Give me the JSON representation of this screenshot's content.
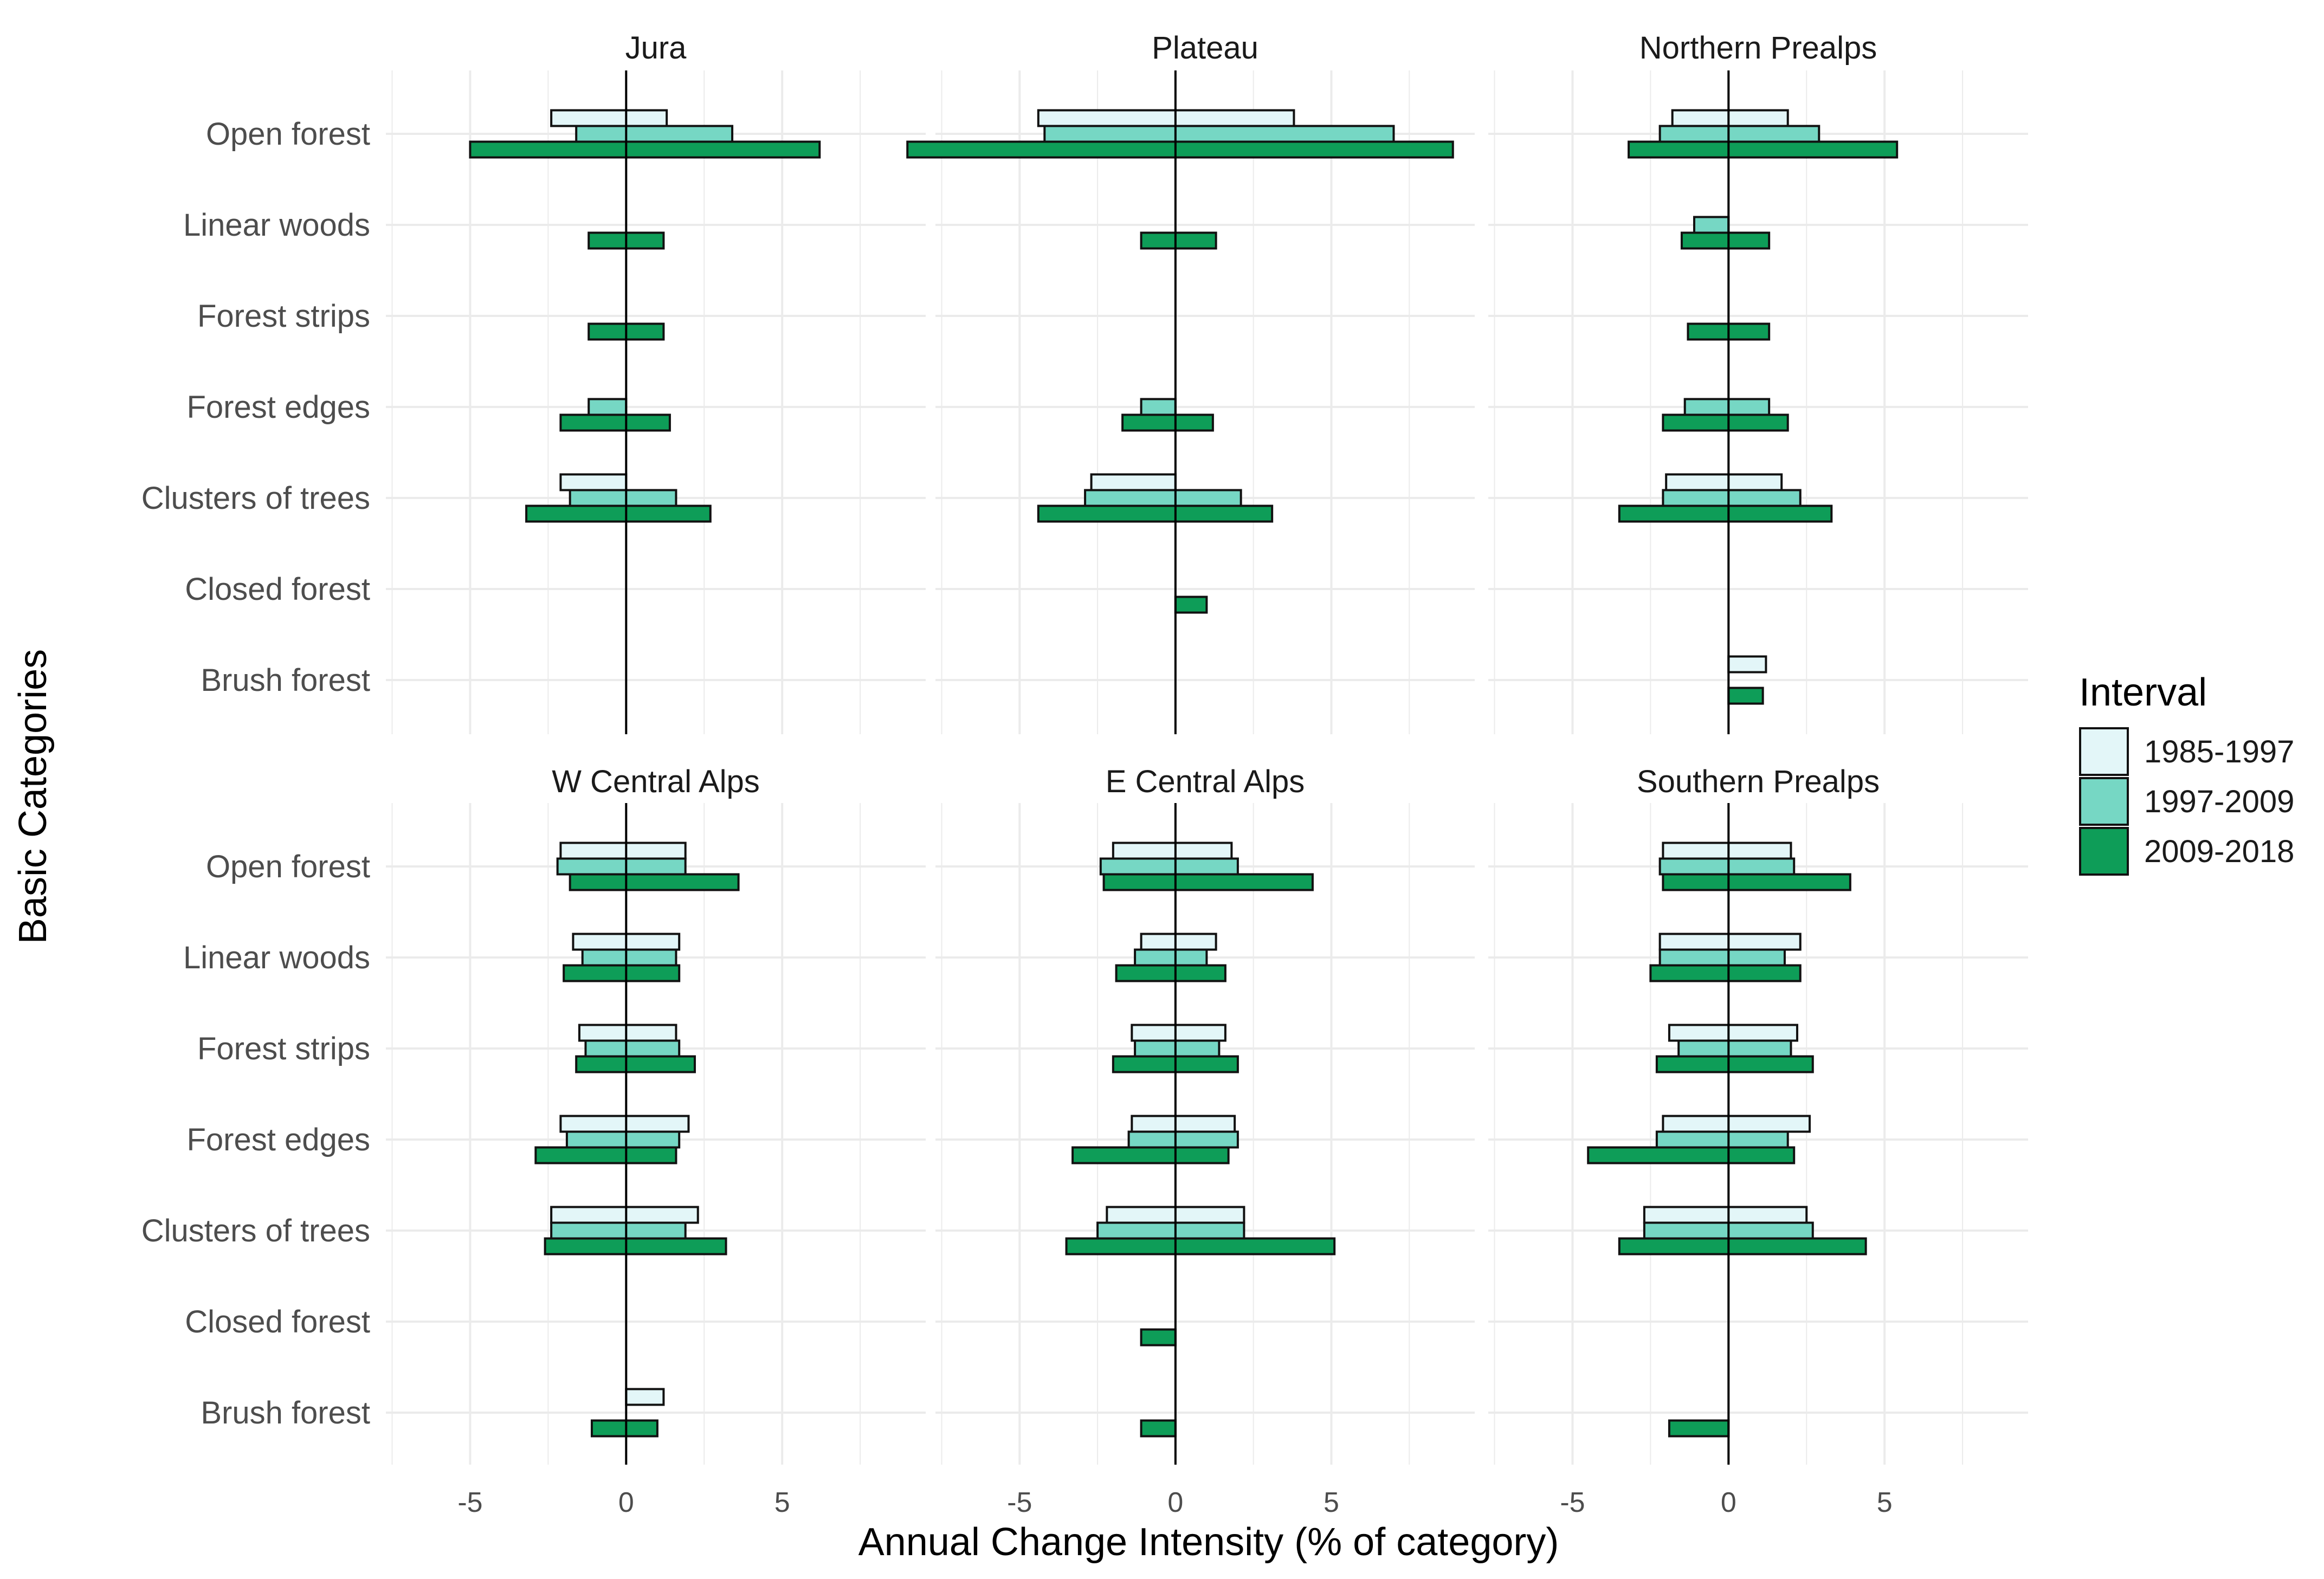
{
  "chart_data": {
    "type": "bar",
    "orientation": "horizontal",
    "xlabel": "Annual Change Intensity (% of category)",
    "ylabel": "Basic Categories",
    "xlim": [
      -7.7,
      9.6
    ],
    "xticks": [
      -5,
      0,
      5
    ],
    "xtick_labels": [
      "-5",
      "0",
      "5"
    ],
    "grid": true,
    "legend": {
      "title": "Interval",
      "placement": "right",
      "entries": [
        "1985-1997",
        "1997-2009",
        "2009-2018"
      ]
    },
    "series_colors": [
      "#e3f6f8",
      "#76d7c4",
      "#0e9d58"
    ],
    "categories": [
      "Open forest",
      "Linear woods",
      "Forest strips",
      "Forest edges",
      "Clusters of trees",
      "Closed forest",
      "Brush forest"
    ],
    "series_names": [
      "1985-1997",
      "1997-2009",
      "2009-2018"
    ],
    "panels": [
      {
        "title": "Jura",
        "bars": [
          {
            "category": "Open forest",
            "series": "1985-1997",
            "neg": -2.4,
            "pos": 1.3
          },
          {
            "category": "Open forest",
            "series": "1997-2009",
            "neg": -1.6,
            "pos": 3.4
          },
          {
            "category": "Open forest",
            "series": "2009-2018",
            "neg": -5.0,
            "pos": 6.2
          },
          {
            "category": "Linear woods",
            "series": "2009-2018",
            "neg": -1.2,
            "pos": 1.2
          },
          {
            "category": "Forest strips",
            "series": "2009-2018",
            "neg": -1.2,
            "pos": 1.2
          },
          {
            "category": "Forest edges",
            "series": "1997-2009",
            "neg": -1.2,
            "pos": 0
          },
          {
            "category": "Forest edges",
            "series": "2009-2018",
            "neg": -2.1,
            "pos": 1.4
          },
          {
            "category": "Clusters of trees",
            "series": "1985-1997",
            "neg": -2.1,
            "pos": 0
          },
          {
            "category": "Clusters of trees",
            "series": "1997-2009",
            "neg": -1.8,
            "pos": 1.6
          },
          {
            "category": "Clusters of trees",
            "series": "2009-2018",
            "neg": -3.2,
            "pos": 2.7
          }
        ]
      },
      {
        "title": "Plateau",
        "bars": [
          {
            "category": "Open forest",
            "series": "1985-1997",
            "neg": -4.4,
            "pos": 3.8
          },
          {
            "category": "Open forest",
            "series": "1997-2009",
            "neg": -4.2,
            "pos": 7.0
          },
          {
            "category": "Open forest",
            "series": "2009-2018",
            "neg": -8.6,
            "pos": 8.9
          },
          {
            "category": "Linear woods",
            "series": "2009-2018",
            "neg": -1.1,
            "pos": 1.3
          },
          {
            "category": "Forest edges",
            "series": "1997-2009",
            "neg": -1.1,
            "pos": 0
          },
          {
            "category": "Forest edges",
            "series": "2009-2018",
            "neg": -1.7,
            "pos": 1.2
          },
          {
            "category": "Clusters of trees",
            "series": "1985-1997",
            "neg": -2.7,
            "pos": 0
          },
          {
            "category": "Clusters of trees",
            "series": "1997-2009",
            "neg": -2.9,
            "pos": 2.1
          },
          {
            "category": "Clusters of trees",
            "series": "2009-2018",
            "neg": -4.4,
            "pos": 3.1
          },
          {
            "category": "Closed forest",
            "series": "2009-2018",
            "neg": 0,
            "pos": 1.0
          }
        ]
      },
      {
        "title": "Northern Prealps",
        "bars": [
          {
            "category": "Open forest",
            "series": "1985-1997",
            "neg": -1.8,
            "pos": 1.9
          },
          {
            "category": "Open forest",
            "series": "1997-2009",
            "neg": -2.2,
            "pos": 2.9
          },
          {
            "category": "Open forest",
            "series": "2009-2018",
            "neg": -3.2,
            "pos": 5.4
          },
          {
            "category": "Linear woods",
            "series": "1997-2009",
            "neg": -1.1,
            "pos": 0
          },
          {
            "category": "Linear woods",
            "series": "2009-2018",
            "neg": -1.5,
            "pos": 1.3
          },
          {
            "category": "Forest strips",
            "series": "2009-2018",
            "neg": -1.3,
            "pos": 1.3
          },
          {
            "category": "Forest edges",
            "series": "1997-2009",
            "neg": -1.4,
            "pos": 1.3
          },
          {
            "category": "Forest edges",
            "series": "2009-2018",
            "neg": -2.1,
            "pos": 1.9
          },
          {
            "category": "Clusters of trees",
            "series": "1985-1997",
            "neg": -2.0,
            "pos": 1.7
          },
          {
            "category": "Clusters of trees",
            "series": "1997-2009",
            "neg": -2.1,
            "pos": 2.3
          },
          {
            "category": "Clusters of trees",
            "series": "2009-2018",
            "neg": -3.5,
            "pos": 3.3
          },
          {
            "category": "Brush forest",
            "series": "1985-1997",
            "neg": 0,
            "pos": 1.2
          },
          {
            "category": "Brush forest",
            "series": "2009-2018",
            "neg": 0,
            "pos": 1.1
          }
        ]
      },
      {
        "title": "W Central Alps",
        "bars": [
          {
            "category": "Open forest",
            "series": "1985-1997",
            "neg": -2.1,
            "pos": 1.9
          },
          {
            "category": "Open forest",
            "series": "1997-2009",
            "neg": -2.2,
            "pos": 1.9
          },
          {
            "category": "Open forest",
            "series": "2009-2018",
            "neg": -1.8,
            "pos": 3.6
          },
          {
            "category": "Linear woods",
            "series": "1985-1997",
            "neg": -1.7,
            "pos": 1.7
          },
          {
            "category": "Linear woods",
            "series": "1997-2009",
            "neg": -1.4,
            "pos": 1.6
          },
          {
            "category": "Linear woods",
            "series": "2009-2018",
            "neg": -2.0,
            "pos": 1.7
          },
          {
            "category": "Forest strips",
            "series": "1985-1997",
            "neg": -1.5,
            "pos": 1.6
          },
          {
            "category": "Forest strips",
            "series": "1997-2009",
            "neg": -1.3,
            "pos": 1.7
          },
          {
            "category": "Forest strips",
            "series": "2009-2018",
            "neg": -1.6,
            "pos": 2.2
          },
          {
            "category": "Forest edges",
            "series": "1985-1997",
            "neg": -2.1,
            "pos": 2.0
          },
          {
            "category": "Forest edges",
            "series": "1997-2009",
            "neg": -1.9,
            "pos": 1.7
          },
          {
            "category": "Forest edges",
            "series": "2009-2018",
            "neg": -2.9,
            "pos": 1.6
          },
          {
            "category": "Clusters of trees",
            "series": "1985-1997",
            "neg": -2.4,
            "pos": 2.3
          },
          {
            "category": "Clusters of trees",
            "series": "1997-2009",
            "neg": -2.4,
            "pos": 1.9
          },
          {
            "category": "Clusters of trees",
            "series": "2009-2018",
            "neg": -2.6,
            "pos": 3.2
          },
          {
            "category": "Brush forest",
            "series": "1985-1997",
            "neg": 0,
            "pos": 1.2
          },
          {
            "category": "Brush forest",
            "series": "2009-2018",
            "neg": -1.1,
            "pos": 1.0
          }
        ]
      },
      {
        "title": "E Central Alps",
        "bars": [
          {
            "category": "Open forest",
            "series": "1985-1997",
            "neg": -2.0,
            "pos": 1.8
          },
          {
            "category": "Open forest",
            "series": "1997-2009",
            "neg": -2.4,
            "pos": 2.0
          },
          {
            "category": "Open forest",
            "series": "2009-2018",
            "neg": -2.3,
            "pos": 4.4
          },
          {
            "category": "Linear woods",
            "series": "1985-1997",
            "neg": -1.1,
            "pos": 1.3
          },
          {
            "category": "Linear woods",
            "series": "1997-2009",
            "neg": -1.3,
            "pos": 1.0
          },
          {
            "category": "Linear woods",
            "series": "2009-2018",
            "neg": -1.9,
            "pos": 1.6
          },
          {
            "category": "Forest strips",
            "series": "1985-1997",
            "neg": -1.4,
            "pos": 1.6
          },
          {
            "category": "Forest strips",
            "series": "1997-2009",
            "neg": -1.3,
            "pos": 1.4
          },
          {
            "category": "Forest strips",
            "series": "2009-2018",
            "neg": -2.0,
            "pos": 2.0
          },
          {
            "category": "Forest edges",
            "series": "1985-1997",
            "neg": -1.4,
            "pos": 1.9
          },
          {
            "category": "Forest edges",
            "series": "1997-2009",
            "neg": -1.5,
            "pos": 2.0
          },
          {
            "category": "Forest edges",
            "series": "2009-2018",
            "neg": -3.3,
            "pos": 1.7
          },
          {
            "category": "Clusters of trees",
            "series": "1985-1997",
            "neg": -2.2,
            "pos": 2.2
          },
          {
            "category": "Clusters of trees",
            "series": "1997-2009",
            "neg": -2.5,
            "pos": 2.2
          },
          {
            "category": "Clusters of trees",
            "series": "2009-2018",
            "neg": -3.5,
            "pos": 5.1
          },
          {
            "category": "Closed forest",
            "series": "2009-2018",
            "neg": -1.1,
            "pos": 0
          },
          {
            "category": "Brush forest",
            "series": "2009-2018",
            "neg": -1.1,
            "pos": 0
          }
        ]
      },
      {
        "title": "Southern Prealps",
        "bars": [
          {
            "category": "Open forest",
            "series": "1985-1997",
            "neg": -2.1,
            "pos": 2.0
          },
          {
            "category": "Open forest",
            "series": "1997-2009",
            "neg": -2.2,
            "pos": 2.1
          },
          {
            "category": "Open forest",
            "series": "2009-2018",
            "neg": -2.1,
            "pos": 3.9
          },
          {
            "category": "Linear woods",
            "series": "1985-1997",
            "neg": -2.2,
            "pos": 2.3
          },
          {
            "category": "Linear woods",
            "series": "1997-2009",
            "neg": -2.2,
            "pos": 1.8
          },
          {
            "category": "Linear woods",
            "series": "2009-2018",
            "neg": -2.5,
            "pos": 2.3
          },
          {
            "category": "Forest strips",
            "series": "1985-1997",
            "neg": -1.9,
            "pos": 2.2
          },
          {
            "category": "Forest strips",
            "series": "1997-2009",
            "neg": -1.6,
            "pos": 2.0
          },
          {
            "category": "Forest strips",
            "series": "2009-2018",
            "neg": -2.3,
            "pos": 2.7
          },
          {
            "category": "Forest edges",
            "series": "1985-1997",
            "neg": -2.1,
            "pos": 2.6
          },
          {
            "category": "Forest edges",
            "series": "1997-2009",
            "neg": -2.3,
            "pos": 1.9
          },
          {
            "category": "Forest edges",
            "series": "2009-2018",
            "neg": -4.5,
            "pos": 2.1
          },
          {
            "category": "Clusters of trees",
            "series": "1985-1997",
            "neg": -2.7,
            "pos": 2.5
          },
          {
            "category": "Clusters of trees",
            "series": "1997-2009",
            "neg": -2.7,
            "pos": 2.7
          },
          {
            "category": "Clusters of trees",
            "series": "2009-2018",
            "neg": -3.5,
            "pos": 4.4
          },
          {
            "category": "Brush forest",
            "series": "2009-2018",
            "neg": -1.9,
            "pos": 0
          }
        ]
      }
    ]
  }
}
